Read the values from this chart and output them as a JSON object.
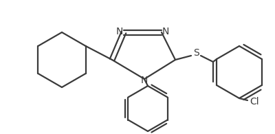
{
  "background_color": "#ffffff",
  "line_color": "#3a3a3a",
  "line_width": 1.6,
  "figsize": [
    4.0,
    1.95
  ],
  "dpi": 100,
  "xlim": [
    0,
    400
  ],
  "ylim": [
    0,
    195
  ]
}
